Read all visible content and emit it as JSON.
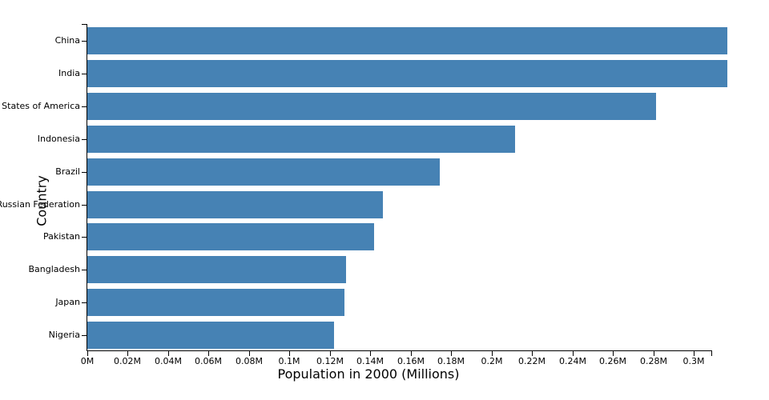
{
  "chart_data": {
    "type": "bar",
    "orientation": "horizontal",
    "title": "",
    "xlabel": "Population in 2000 (Millions)",
    "ylabel": "Country",
    "categories": [
      "China",
      "India",
      "United States of America",
      "Indonesia",
      "Brazil",
      "Russian Federation",
      "Pakistan",
      "Bangladesh",
      "Japan",
      "Nigeria"
    ],
    "values": [
      0.3166,
      0.3166,
      0.2814,
      0.2116,
      0.1744,
      0.1462,
      0.1419,
      0.128,
      0.1272,
      0.1221
    ],
    "unit": "M",
    "xlim": [
      0,
      0.3087
    ],
    "x_ticks": [
      0,
      0.02,
      0.04,
      0.06,
      0.08,
      0.1,
      0.12,
      0.14,
      0.16,
      0.18,
      0.2,
      0.22,
      0.24,
      0.26,
      0.28,
      0.3
    ],
    "x_tick_labels": [
      "0M",
      "0.02M",
      "0.04M",
      "0.06M",
      "0.08M",
      "0.1M",
      "0.12M",
      "0.14M",
      "0.16M",
      "0.18M",
      "0.2M",
      "0.22M",
      "0.24M",
      "0.26M",
      "0.28M",
      "0.3M"
    ],
    "bar_color": "#4682b4",
    "grid": false,
    "legend": null,
    "note": "China and India bars extend past the axis end and are clipped at the right edge of the plot area"
  }
}
